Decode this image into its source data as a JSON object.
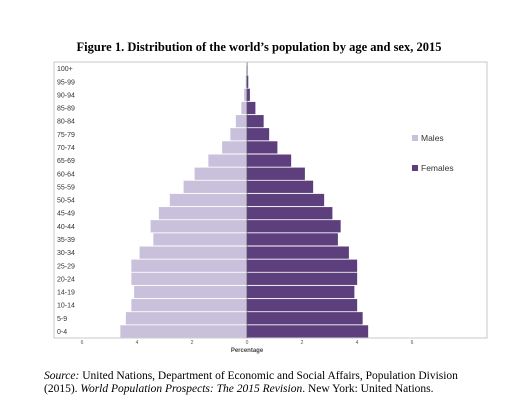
{
  "chart_data": {
    "type": "bar",
    "title": "Figure 1.  Distribution of the world’s population by age and sex, 2015",
    "xlabel": "Percentage",
    "ylabel": "",
    "categories": [
      "0-4",
      "5-9",
      "10-14",
      "14-19",
      "20-24",
      "25-29",
      "30-34",
      "35-39",
      "40-44",
      "45-49",
      "50-54",
      "55-59",
      "60-64",
      "65-69",
      "70-74",
      "75-79",
      "80-84",
      "85-89",
      "90-94",
      "95-99",
      "100+"
    ],
    "xticks": [
      "6",
      "4",
      "2",
      "0",
      "2",
      "4",
      "6"
    ],
    "xlim": [
      -6,
      6
    ],
    "series": [
      {
        "name": "Males",
        "color": "#c9c1dc",
        "values": [
          4.6,
          4.4,
          4.2,
          4.1,
          4.2,
          4.2,
          3.9,
          3.4,
          3.5,
          3.2,
          2.8,
          2.3,
          1.9,
          1.4,
          0.9,
          0.6,
          0.4,
          0.2,
          0.1,
          0.04,
          0.01
        ]
      },
      {
        "name": "Females",
        "color": "#5c3f7c",
        "values": [
          4.4,
          4.2,
          4.0,
          3.9,
          4.0,
          4.0,
          3.7,
          3.3,
          3.4,
          3.1,
          2.8,
          2.4,
          2.1,
          1.6,
          1.1,
          0.8,
          0.6,
          0.3,
          0.1,
          0.04,
          0.01
        ]
      }
    ],
    "legend": "right",
    "grid": false
  },
  "source": {
    "label": "Source:",
    "text1": " United Nations, Department of Economic and Social Affairs, Population Division (2015). ",
    "italic": "World Population Prospects: The 2015 Revision",
    "text2": ". New York: United Nations."
  }
}
